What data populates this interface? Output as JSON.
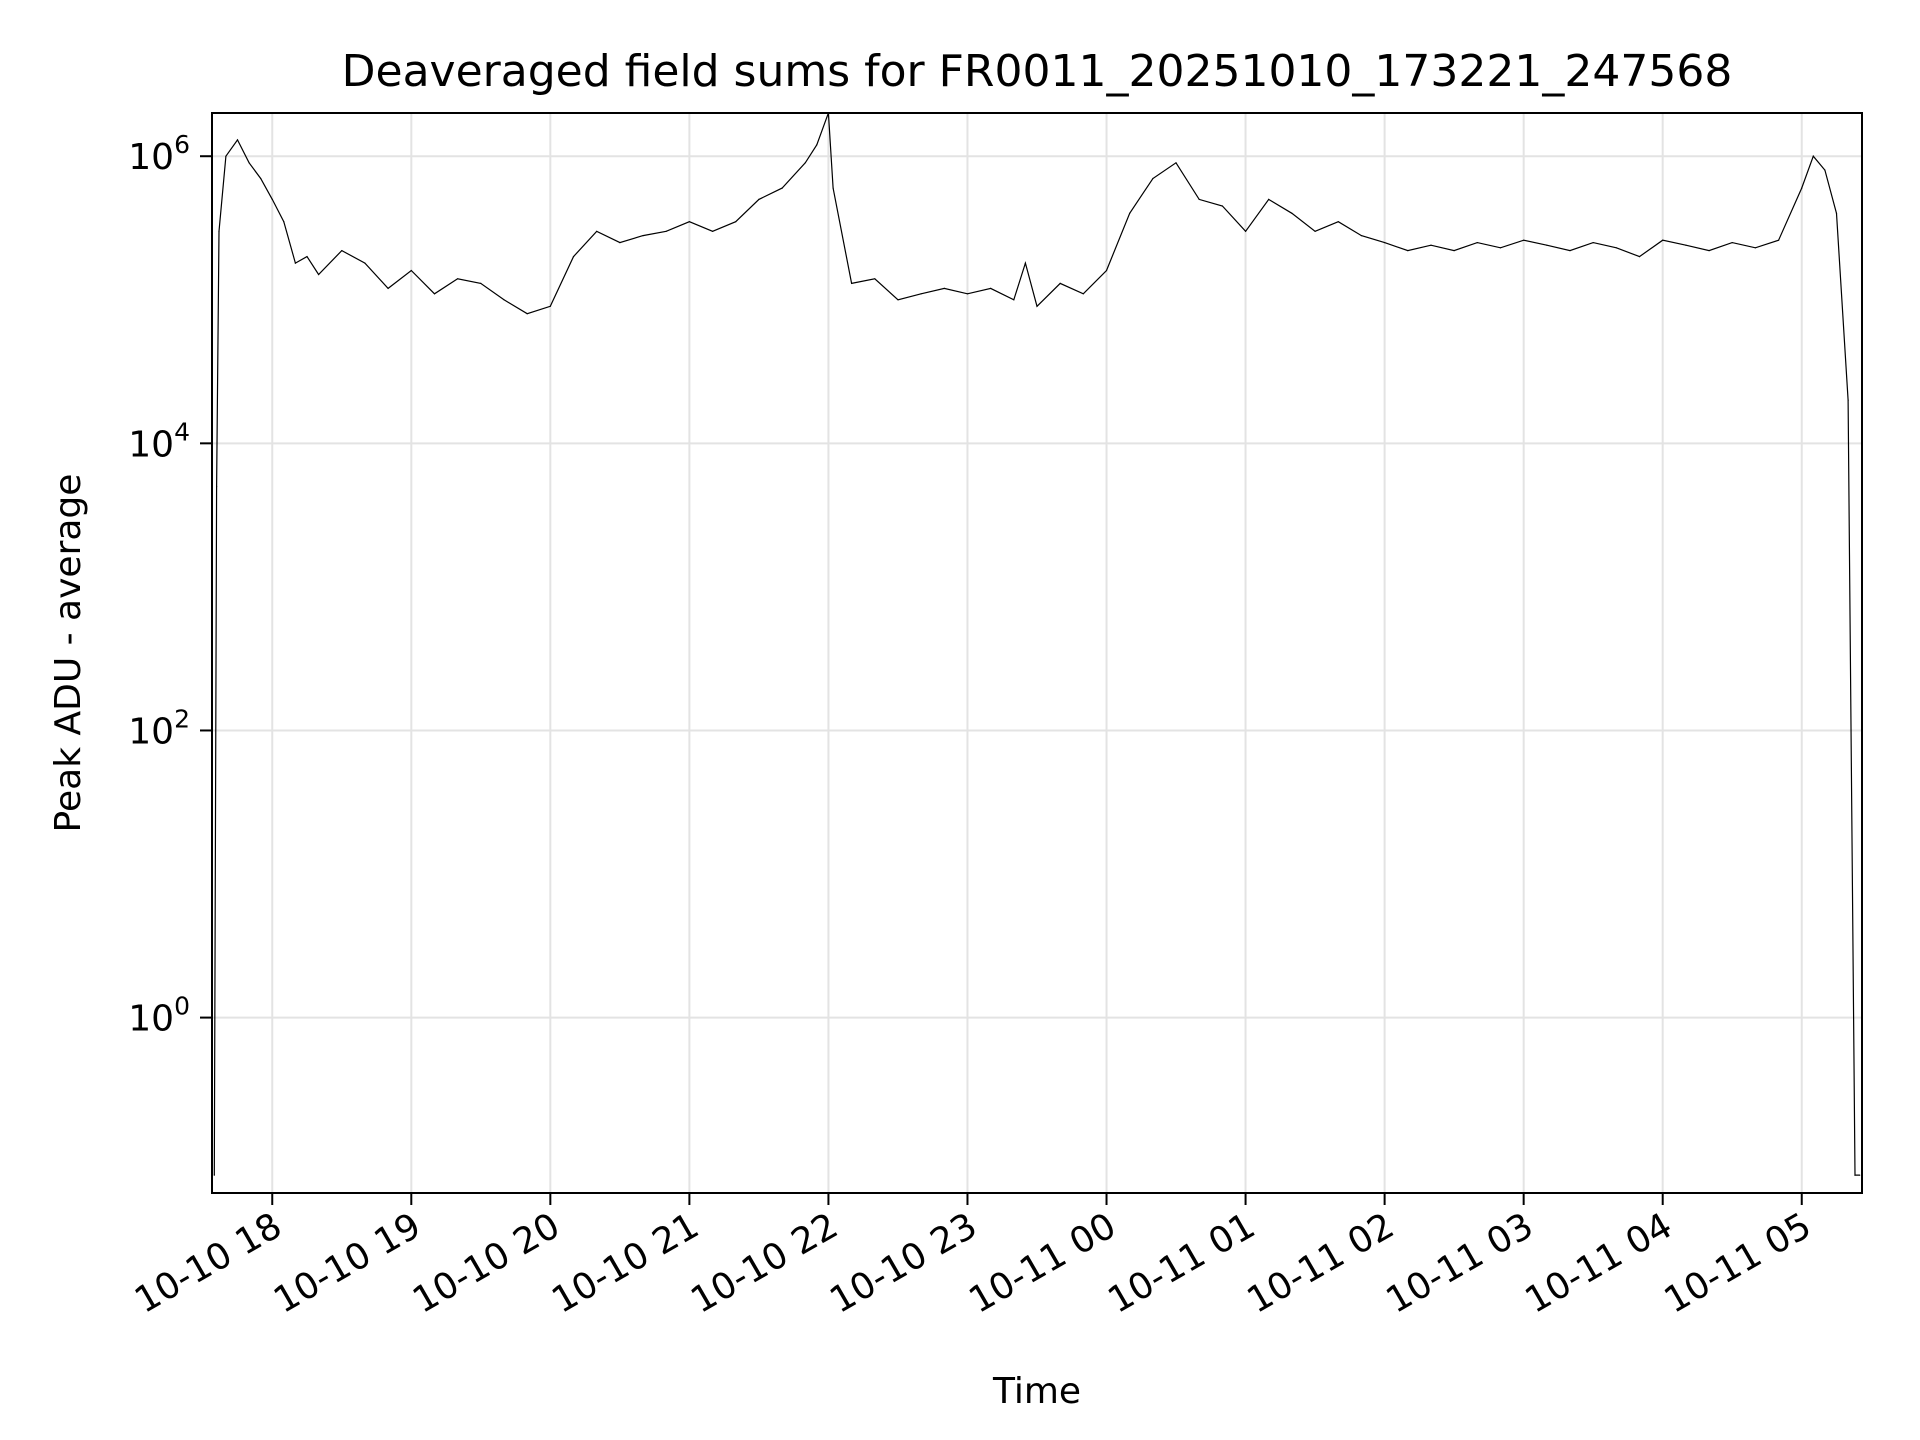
{
  "chart_data": {
    "type": "line",
    "title": "Deaveraged field sums for FR0011_20251010_173221_247568",
    "xlabel": "Time",
    "ylabel": "Peak ADU - average",
    "yscale": "log",
    "grid": true,
    "legend": "none",
    "xlim": [
      "2025-10-10 17:34",
      "2025-10-11 05:26"
    ],
    "ylim": [
      0.06,
      2000000
    ],
    "x_ticks": [
      {
        "value": "2025-10-10 18:00",
        "label": "10-10 18"
      },
      {
        "value": "2025-10-10 19:00",
        "label": "10-10 19"
      },
      {
        "value": "2025-10-10 20:00",
        "label": "10-10 20"
      },
      {
        "value": "2025-10-10 21:00",
        "label": "10-10 21"
      },
      {
        "value": "2025-10-10 22:00",
        "label": "10-10 22"
      },
      {
        "value": "2025-10-10 23:00",
        "label": "10-10 23"
      },
      {
        "value": "2025-10-11 00:00",
        "label": "10-11 00"
      },
      {
        "value": "2025-10-11 01:00",
        "label": "10-11 01"
      },
      {
        "value": "2025-10-11 02:00",
        "label": "10-11 02"
      },
      {
        "value": "2025-10-11 03:00",
        "label": "10-11 03"
      },
      {
        "value": "2025-10-11 04:00",
        "label": "10-11 04"
      },
      {
        "value": "2025-10-11 05:00",
        "label": "10-11 05"
      }
    ],
    "y_ticks": [
      {
        "value": 1,
        "base": "10",
        "exp": "0"
      },
      {
        "value": 100,
        "base": "10",
        "exp": "2"
      },
      {
        "value": 10000,
        "base": "10",
        "exp": "4"
      },
      {
        "value": 1000000,
        "base": "10",
        "exp": "6"
      }
    ],
    "series": [
      {
        "color": "#000000",
        "x": [
          "2025-10-10 17:35",
          "2025-10-10 17:36",
          "2025-10-10 17:37",
          "2025-10-10 17:40",
          "2025-10-10 17:45",
          "2025-10-10 17:50",
          "2025-10-10 17:55",
          "2025-10-10 18:00",
          "2025-10-10 18:05",
          "2025-10-10 18:10",
          "2025-10-10 18:15",
          "2025-10-10 18:20",
          "2025-10-10 18:30",
          "2025-10-10 18:40",
          "2025-10-10 18:50",
          "2025-10-10 19:00",
          "2025-10-10 19:10",
          "2025-10-10 19:20",
          "2025-10-10 19:30",
          "2025-10-10 19:40",
          "2025-10-10 19:50",
          "2025-10-10 20:00",
          "2025-10-10 20:10",
          "2025-10-10 20:20",
          "2025-10-10 20:30",
          "2025-10-10 20:40",
          "2025-10-10 20:50",
          "2025-10-10 21:00",
          "2025-10-10 21:10",
          "2025-10-10 21:20",
          "2025-10-10 21:30",
          "2025-10-10 21:40",
          "2025-10-10 21:50",
          "2025-10-10 21:55",
          "2025-10-10 22:00",
          "2025-10-10 22:02",
          "2025-10-10 22:10",
          "2025-10-10 22:20",
          "2025-10-10 22:30",
          "2025-10-10 22:40",
          "2025-10-10 22:50",
          "2025-10-10 23:00",
          "2025-10-10 23:10",
          "2025-10-10 23:20",
          "2025-10-10 23:25",
          "2025-10-10 23:30",
          "2025-10-10 23:40",
          "2025-10-10 23:50",
          "2025-10-11 00:00",
          "2025-10-11 00:10",
          "2025-10-11 00:20",
          "2025-10-11 00:30",
          "2025-10-11 00:40",
          "2025-10-11 00:50",
          "2025-10-11 01:00",
          "2025-10-11 01:10",
          "2025-10-11 01:20",
          "2025-10-11 01:30",
          "2025-10-11 01:40",
          "2025-10-11 01:50",
          "2025-10-11 02:00",
          "2025-10-11 02:10",
          "2025-10-11 02:20",
          "2025-10-11 02:30",
          "2025-10-11 02:40",
          "2025-10-11 02:50",
          "2025-10-11 03:00",
          "2025-10-11 03:10",
          "2025-10-11 03:20",
          "2025-10-11 03:30",
          "2025-10-11 03:40",
          "2025-10-11 03:50",
          "2025-10-11 04:00",
          "2025-10-11 04:10",
          "2025-10-11 04:20",
          "2025-10-11 04:30",
          "2025-10-11 04:40",
          "2025-10-11 04:50",
          "2025-10-11 05:00",
          "2025-10-11 05:05",
          "2025-10-11 05:10",
          "2025-10-11 05:15",
          "2025-10-11 05:20",
          "2025-10-11 05:23",
          "2025-10-11 05:25"
        ],
        "y": [
          0.08,
          5000,
          300000,
          1000000,
          1300000,
          900000,
          700000,
          500000,
          350000,
          180000,
          200000,
          150000,
          220000,
          180000,
          120000,
          160000,
          110000,
          140000,
          130000,
          100000,
          80000,
          90000,
          200000,
          300000,
          250000,
          280000,
          300000,
          350000,
          300000,
          350000,
          500000,
          600000,
          900000,
          1200000,
          2000000,
          600000,
          130000,
          140000,
          100000,
          110000,
          120000,
          110000,
          120000,
          100000,
          180000,
          90000,
          130000,
          110000,
          160000,
          400000,
          700000,
          900000,
          500000,
          450000,
          300000,
          500000,
          400000,
          300000,
          350000,
          280000,
          250000,
          220000,
          240000,
          220000,
          250000,
          230000,
          260000,
          240000,
          220000,
          250000,
          230000,
          200000,
          260000,
          240000,
          220000,
          250000,
          230000,
          260000,
          600000,
          1000000,
          800000,
          400000,
          20000,
          0.08,
          0.08
        ]
      }
    ],
    "annotations": []
  }
}
